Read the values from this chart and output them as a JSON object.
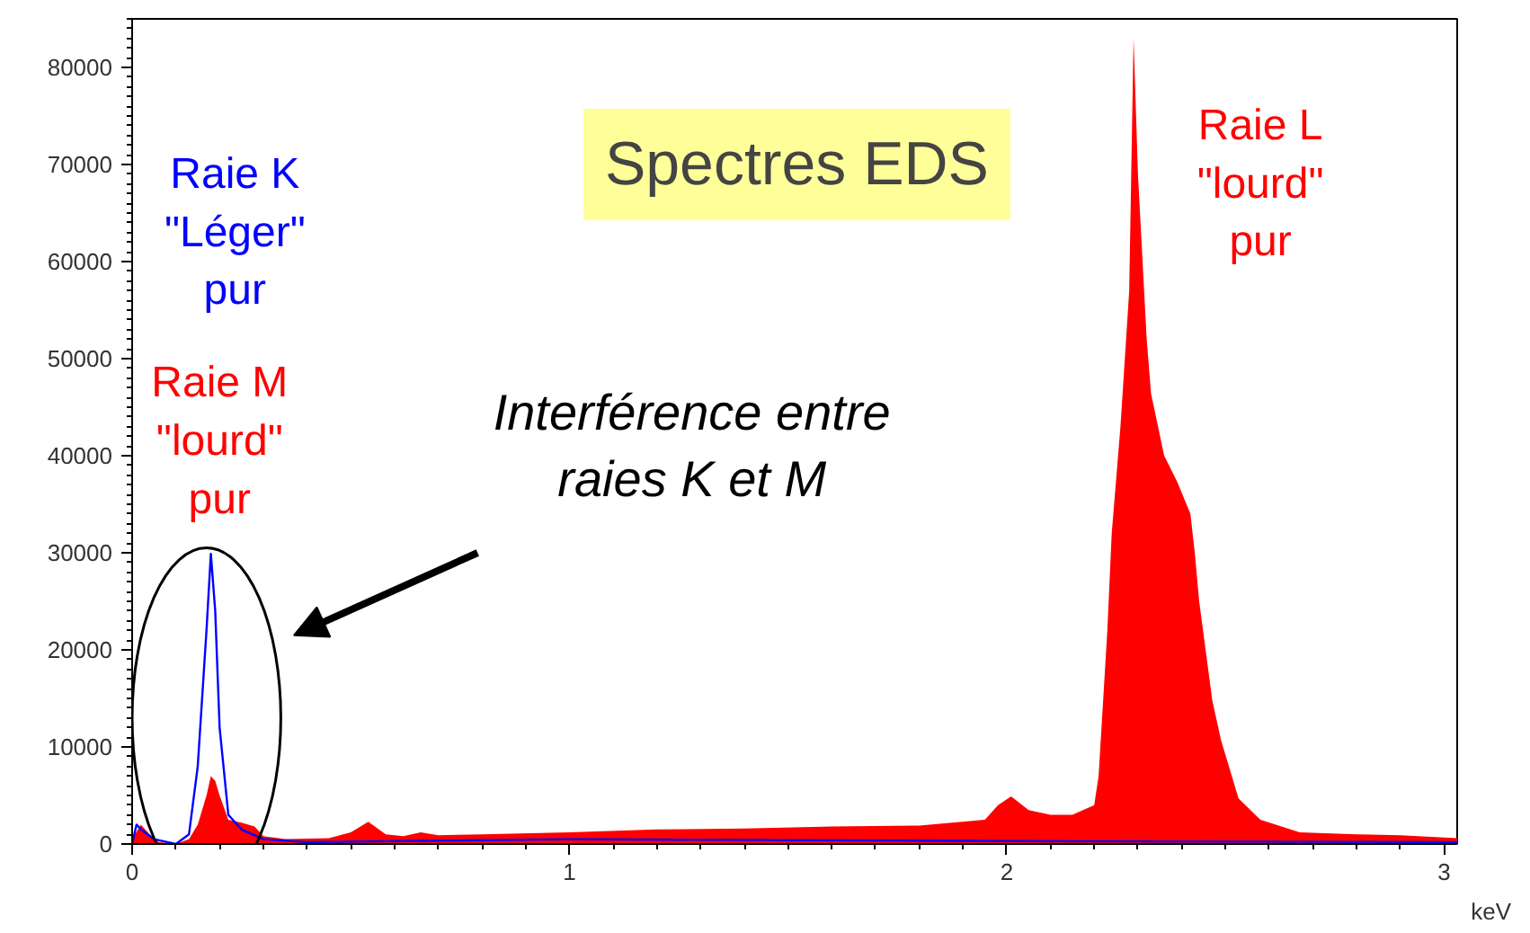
{
  "chart_data": {
    "type": "area",
    "title": "Spectres EDS",
    "xlabel": "keV",
    "xlim": [
      0,
      3.03
    ],
    "ylim": [
      0,
      85000
    ],
    "xticks": [
      0,
      1,
      2,
      3
    ],
    "yticks": [
      0,
      10000,
      20000,
      30000,
      40000,
      50000,
      60000,
      70000,
      80000
    ],
    "grid": false,
    "legend": false,
    "series": [
      {
        "color": "#ff0000",
        "x": [
          0,
          0.02,
          0.04,
          0.06,
          0.1,
          0.13,
          0.15,
          0.17,
          0.18,
          0.19,
          0.2,
          0.22,
          0.25,
          0.28,
          0.3,
          0.35,
          0.45,
          0.5,
          0.54,
          0.58,
          0.62,
          0.66,
          0.7,
          0.8,
          1.0,
          1.2,
          1.4,
          1.6,
          1.8,
          1.95,
          1.98,
          2.01,
          2.05,
          2.1,
          2.15,
          2.2,
          2.21,
          2.23,
          2.24,
          2.26,
          2.28,
          2.29,
          2.3,
          2.32,
          2.33,
          2.36,
          2.39,
          2.42,
          2.43,
          2.44,
          2.47,
          2.49,
          2.53,
          2.58,
          2.67,
          2.8,
          2.9,
          3.03
        ],
        "values": [
          500,
          2000,
          1000,
          200,
          0,
          500,
          2000,
          5000,
          7000,
          6500,
          5000,
          2500,
          2200,
          1800,
          800,
          500,
          600,
          1200,
          2300,
          1000,
          800,
          1200,
          900,
          1000,
          1200,
          1500,
          1600,
          1800,
          1900,
          2500,
          4000,
          4900,
          3500,
          3000,
          3000,
          4000,
          7000,
          22000,
          32000,
          43000,
          57000,
          83000,
          69000,
          52000,
          46400,
          40000,
          37300,
          34000,
          30000,
          25000,
          14800,
          10700,
          4700,
          2500,
          1200,
          1000,
          900,
          600
        ]
      },
      {
        "type": "line",
        "name": "Raie K\n\"Léger\"\npur",
        "color": "#0000ff",
        "x": [
          0,
          0.01,
          0.02,
          0.05,
          0.1,
          0.13,
          0.15,
          0.17,
          0.18,
          0.19,
          0.2,
          0.22,
          0.25,
          0.3,
          0.4,
          1.0,
          2.0,
          3.03
        ],
        "values": [
          0,
          2000,
          1500,
          500,
          0,
          1000,
          8000,
          22000,
          29900,
          24000,
          12000,
          3000,
          1500,
          500,
          200,
          500,
          300,
          200
        ]
      }
    ],
    "annotations": [
      "Raie M\n\"lourd\"\npur",
      "Raie L\n\"lourd\"\npur",
      "Interférence entre\nraies K et M"
    ]
  }
}
